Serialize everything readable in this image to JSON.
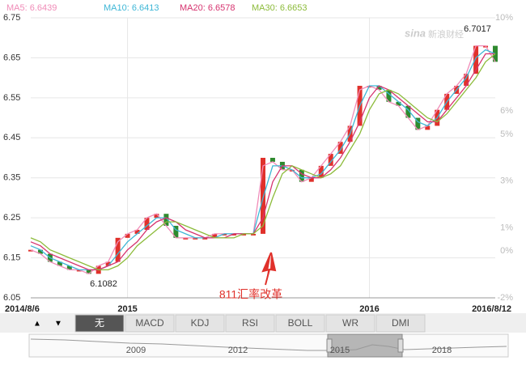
{
  "chart_data": {
    "type": "candle",
    "categories": [
      "2014/8/6",
      null,
      null,
      null,
      null,
      null,
      null,
      null,
      null,
      null,
      "2015",
      null,
      null,
      null,
      null,
      null,
      null,
      null,
      null,
      null,
      null,
      null,
      null,
      null,
      null,
      null,
      null,
      null,
      null,
      null,
      null,
      null,
      null,
      null,
      null,
      "2016",
      null,
      null,
      null,
      null,
      null,
      null,
      null,
      null,
      null,
      null,
      null,
      null,
      "2016/8/12"
    ],
    "values": [
      6.17,
      6.16,
      6.14,
      6.13,
      6.12,
      6.12,
      6.11,
      6.13,
      6.14,
      6.2,
      6.21,
      6.22,
      6.25,
      6.26,
      6.23,
      6.2,
      6.2,
      6.2,
      6.2,
      6.21,
      6.21,
      6.21,
      6.21,
      6.21,
      6.4,
      6.39,
      6.37,
      6.37,
      6.34,
      6.35,
      6.38,
      6.41,
      6.44,
      6.48,
      6.58,
      6.58,
      6.57,
      6.54,
      6.53,
      6.5,
      6.47,
      6.48,
      6.52,
      6.56,
      6.58,
      6.61,
      6.68,
      6.68,
      6.64
    ],
    "up_color": "#e0312b",
    "down_color": "#2f8a2f",
    "series": [
      {
        "name": "MA5: 6.6439",
        "color": "#f08cb8",
        "values": [
          6.17,
          6.16,
          6.14,
          6.13,
          6.12,
          6.12,
          6.11,
          6.13,
          6.14,
          6.19,
          6.21,
          6.22,
          6.25,
          6.26,
          6.23,
          6.2,
          6.2,
          6.2,
          6.2,
          6.21,
          6.21,
          6.21,
          6.21,
          6.21,
          6.38,
          6.39,
          6.37,
          6.37,
          6.34,
          6.35,
          6.38,
          6.41,
          6.44,
          6.48,
          6.57,
          6.58,
          6.57,
          6.54,
          6.53,
          6.5,
          6.47,
          6.48,
          6.52,
          6.56,
          6.58,
          6.61,
          6.68,
          6.68,
          6.64
        ]
      },
      {
        "name": "MA10: 6.6413",
        "color": "#3db6d6",
        "values": [
          6.18,
          6.17,
          6.15,
          6.14,
          6.13,
          6.12,
          6.12,
          6.12,
          6.13,
          6.16,
          6.19,
          6.21,
          6.23,
          6.25,
          6.25,
          6.22,
          6.21,
          6.2,
          6.2,
          6.2,
          6.21,
          6.21,
          6.21,
          6.21,
          6.3,
          6.38,
          6.38,
          6.37,
          6.35,
          6.35,
          6.36,
          6.39,
          6.42,
          6.46,
          6.53,
          6.58,
          6.58,
          6.56,
          6.54,
          6.52,
          6.49,
          6.48,
          6.5,
          6.54,
          6.57,
          6.6,
          6.65,
          6.67,
          6.66
        ]
      },
      {
        "name": "MA20: 6.6578",
        "color": "#d6336f",
        "values": [
          6.19,
          6.18,
          6.16,
          6.15,
          6.14,
          6.13,
          6.12,
          6.12,
          6.13,
          6.14,
          6.17,
          6.19,
          6.22,
          6.24,
          6.25,
          6.24,
          6.22,
          6.21,
          6.2,
          6.2,
          6.2,
          6.21,
          6.21,
          6.21,
          6.25,
          6.34,
          6.38,
          6.38,
          6.36,
          6.35,
          6.35,
          6.37,
          6.4,
          6.44,
          6.49,
          6.55,
          6.58,
          6.57,
          6.55,
          6.53,
          6.51,
          6.49,
          6.49,
          6.52,
          6.55,
          6.58,
          6.62,
          6.66,
          6.66
        ]
      },
      {
        "name": "MA30: 6.6653",
        "color": "#8cbb3a",
        "values": [
          6.2,
          6.19,
          6.17,
          6.16,
          6.15,
          6.14,
          6.13,
          6.12,
          6.12,
          6.13,
          6.15,
          6.18,
          6.2,
          6.22,
          6.24,
          6.24,
          6.23,
          6.22,
          6.21,
          6.2,
          6.2,
          6.2,
          6.21,
          6.21,
          6.23,
          6.3,
          6.36,
          6.38,
          6.37,
          6.36,
          6.35,
          6.36,
          6.38,
          6.42,
          6.46,
          6.52,
          6.56,
          6.57,
          6.56,
          6.54,
          6.52,
          6.5,
          6.49,
          6.51,
          6.54,
          6.57,
          6.6,
          6.64,
          6.66
        ]
      }
    ],
    "ylim": [
      6.05,
      6.75
    ],
    "yticks": [
      6.05,
      6.15,
      6.25,
      6.35,
      6.45,
      6.55,
      6.65,
      6.75
    ],
    "y2lim": [
      -2,
      10
    ],
    "y2ticks": [
      {
        "value": 10,
        "label": "10%"
      },
      {
        "value": 6,
        "label": "6%"
      },
      {
        "value": 5,
        "label": "5%"
      },
      {
        "value": 3,
        "label": "3%"
      },
      {
        "value": 1,
        "label": "1%"
      },
      {
        "value": 0,
        "label": "0%"
      },
      {
        "value": -2,
        "label": "-2%"
      }
    ],
    "grid": true,
    "high": 6.7017,
    "low": 6.1082,
    "annotation": "811汇率改革",
    "watermark": {
      "logo": "sina",
      "text": "新浪财经"
    }
  },
  "toolbar": {
    "arrows": [
      "▲",
      "▼"
    ],
    "buttons": [
      "无",
      "MACD",
      "KDJ",
      "RSI",
      "BOLL",
      "WR",
      "DMI"
    ]
  },
  "navigator": {
    "years": [
      "2009",
      "2012",
      "2015",
      "2018"
    ]
  }
}
